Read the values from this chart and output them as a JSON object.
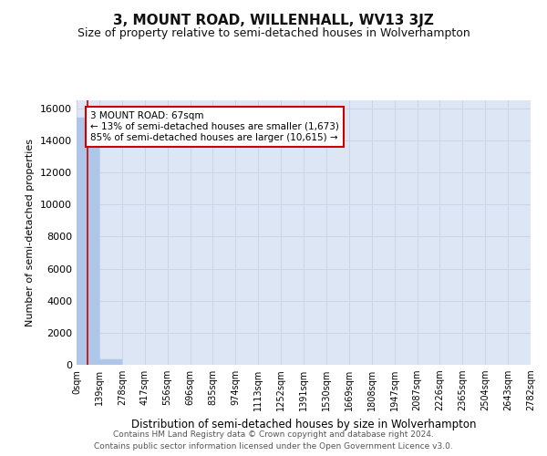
{
  "title": "3, MOUNT ROAD, WILLENHALL, WV13 3JZ",
  "subtitle": "Size of property relative to semi-detached houses in Wolverhampton",
  "xlabel": "Distribution of semi-detached houses by size in Wolverhampton",
  "ylabel": "Number of semi-detached properties",
  "footer_line1": "Contains HM Land Registry data © Crown copyright and database right 2024.",
  "footer_line2": "Contains public sector information licensed under the Open Government Licence v3.0.",
  "property_size": 67,
  "property_label": "3 MOUNT ROAD: 67sqm",
  "annotation_smaller": "← 13% of semi-detached houses are smaller (1,673)",
  "annotation_larger": "85% of semi-detached houses are larger (10,615) →",
  "bin_edges": [
    0,
    139,
    278,
    417,
    556,
    696,
    835,
    974,
    1113,
    1252,
    1391,
    1530,
    1669,
    1808,
    1947,
    2087,
    2226,
    2365,
    2504,
    2643,
    2782
  ],
  "bin_labels": [
    "0sqm",
    "139sqm",
    "278sqm",
    "417sqm",
    "556sqm",
    "696sqm",
    "835sqm",
    "974sqm",
    "1113sqm",
    "1252sqm",
    "1391sqm",
    "1530sqm",
    "1669sqm",
    "1808sqm",
    "1947sqm",
    "2087sqm",
    "2226sqm",
    "2365sqm",
    "2504sqm",
    "2643sqm",
    "2782sqm"
  ],
  "bar_heights": [
    15400,
    350,
    0,
    0,
    0,
    0,
    0,
    0,
    0,
    0,
    0,
    0,
    0,
    0,
    0,
    0,
    0,
    0,
    0,
    0
  ],
  "bar_color": "#aec6e8",
  "bar_edge_color": "#aec6e8",
  "vline_color": "#cc0000",
  "annotation_box_color": "#cc0000",
  "annotation_fill": "#ffffff",
  "grid_color": "#c8d4e8",
  "background_color": "#dce6f5",
  "ylim": [
    0,
    16500
  ],
  "yticks": [
    0,
    2000,
    4000,
    6000,
    8000,
    10000,
    12000,
    14000,
    16000
  ],
  "title_fontsize": 11,
  "subtitle_fontsize": 9,
  "ylabel_fontsize": 8,
  "xlabel_fontsize": 8.5,
  "tick_fontsize": 8,
  "xtick_fontsize": 7,
  "footer_fontsize": 6.5,
  "annot_fontsize": 7.5
}
